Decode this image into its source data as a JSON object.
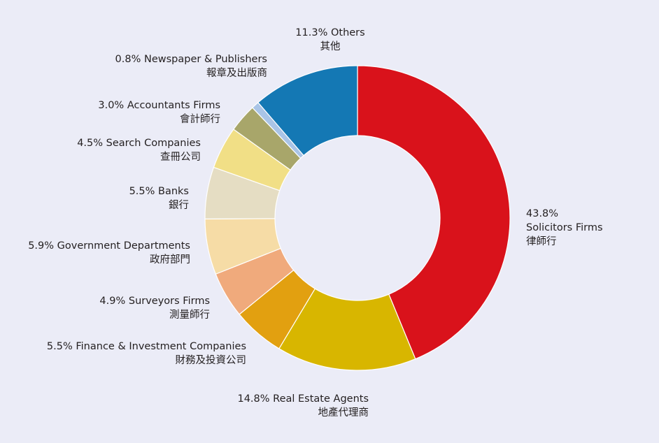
{
  "chart_data": {
    "type": "pie",
    "variant": "donut",
    "slices": [
      {
        "value": 43.8,
        "pct_label": "43.8%",
        "name_en": "Solicitors Firms",
        "name_zh": "律師行",
        "color": "#D9121B"
      },
      {
        "value": 14.8,
        "pct_label": "14.8%",
        "name_en": "Real Estate Agents",
        "name_zh": "地產代理商",
        "color": "#D8B600"
      },
      {
        "value": 5.5,
        "pct_label": "5.5%",
        "name_en": "Finance & Investment Companies",
        "name_zh": "財務及投資公司",
        "color": "#E2A010"
      },
      {
        "value": 4.9,
        "pct_label": "4.9%",
        "name_en": "Surveyors Firms",
        "name_zh": "測量師行",
        "color": "#F0AA7C"
      },
      {
        "value": 5.9,
        "pct_label": "5.9%",
        "name_en": "Government Departments",
        "name_zh": "政府部門",
        "color": "#F6DCA6"
      },
      {
        "value": 5.5,
        "pct_label": "5.5%",
        "name_en": "Banks",
        "name_zh": "銀行",
        "color": "#E5DDC3"
      },
      {
        "value": 4.5,
        "pct_label": "4.5%",
        "name_en": "Search Companies",
        "name_zh": "查冊公司",
        "color": "#F1DF86"
      },
      {
        "value": 3.0,
        "pct_label": "3.0%",
        "name_en": "Accountants Firms",
        "name_zh": "會計師行",
        "color": "#A8A66A"
      },
      {
        "value": 0.8,
        "pct_label": "0.8%",
        "name_en": "Newspaper & Publishers",
        "name_zh": "報章及出版商",
        "color": "#A9C4E6"
      },
      {
        "value": 11.3,
        "pct_label": "11.3%",
        "name_en": "Others",
        "name_zh": "其他",
        "color": "#1478B4"
      }
    ],
    "start": "top",
    "direction": "clockwise"
  }
}
